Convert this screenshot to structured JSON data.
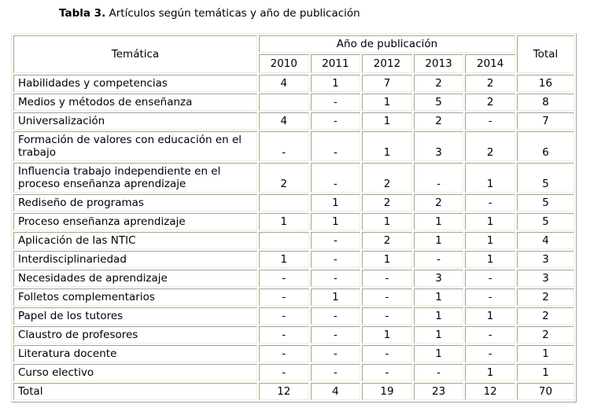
{
  "caption": {
    "label": "Tabla 3.",
    "text": " Artículos según temáticas y año de publicación"
  },
  "table": {
    "tematica_header": "Temática",
    "year_group_header": "Año de publicación",
    "total_header": "Total",
    "years": [
      "2010",
      "2011",
      "2012",
      "2013",
      "2014"
    ],
    "rows": [
      {
        "tematica": "Habilidades y competencias",
        "values": [
          "4",
          "1",
          "7",
          "2",
          "2",
          "16"
        ]
      },
      {
        "tematica": "Medios y métodos de enseñanza",
        "values": [
          "",
          "-",
          "1",
          "5",
          "2",
          "8"
        ]
      },
      {
        "tematica": "Universalización",
        "values": [
          "4",
          "-",
          "1",
          "2",
          "-",
          "7"
        ]
      },
      {
        "tematica": "Formación de valores con educación en el trabajo",
        "values": [
          "-",
          "-",
          "1",
          "3",
          "2",
          "6"
        ]
      },
      {
        "tematica": "Influencia trabajo independiente en el proceso enseñanza aprendizaje",
        "values": [
          "2",
          "-",
          "2",
          "-",
          "1",
          "5"
        ]
      },
      {
        "tematica": "Rediseño de programas",
        "values": [
          "",
          "1",
          "2",
          "2",
          "-",
          "5"
        ]
      },
      {
        "tematica": "Proceso enseñanza aprendizaje",
        "values": [
          "1",
          "1",
          "1",
          "1",
          "1",
          "5"
        ]
      },
      {
        "tematica": "Aplicación de las NTIC",
        "values": [
          "",
          "-",
          "2",
          "1",
          "1",
          "4"
        ]
      },
      {
        "tematica": "Interdisciplinariedad",
        "values": [
          "1",
          "-",
          "1",
          "-",
          "1",
          "3"
        ]
      },
      {
        "tematica": "Necesidades de aprendizaje",
        "values": [
          "-",
          "-",
          "-",
          "3",
          "-",
          "3"
        ]
      },
      {
        "tematica": "Folletos complementarios",
        "values": [
          "-",
          "1",
          "-",
          "1",
          "-",
          "2"
        ]
      },
      {
        "tematica": "Papel de los tutores",
        "values": [
          "-",
          "-",
          "-",
          "1",
          "1",
          "2"
        ]
      },
      {
        "tematica": "Claustro de profesores",
        "values": [
          "-",
          "-",
          "1",
          "1",
          "-",
          "2"
        ]
      },
      {
        "tematica": "Literatura docente",
        "values": [
          "-",
          "-",
          "-",
          "1",
          "-",
          "1"
        ]
      },
      {
        "tematica": "Curso electivo",
        "values": [
          "-",
          "-",
          "-",
          "-",
          "1",
          "1"
        ]
      }
    ],
    "total_row": {
      "tematica": "Total",
      "values": [
        "12",
        "4",
        "19",
        "23",
        "12",
        "70"
      ]
    }
  },
  "colors": {
    "border_dark": "#a6a290",
    "border_light": "#f0ecda",
    "background": "#ffffff",
    "text": "#000000"
  }
}
